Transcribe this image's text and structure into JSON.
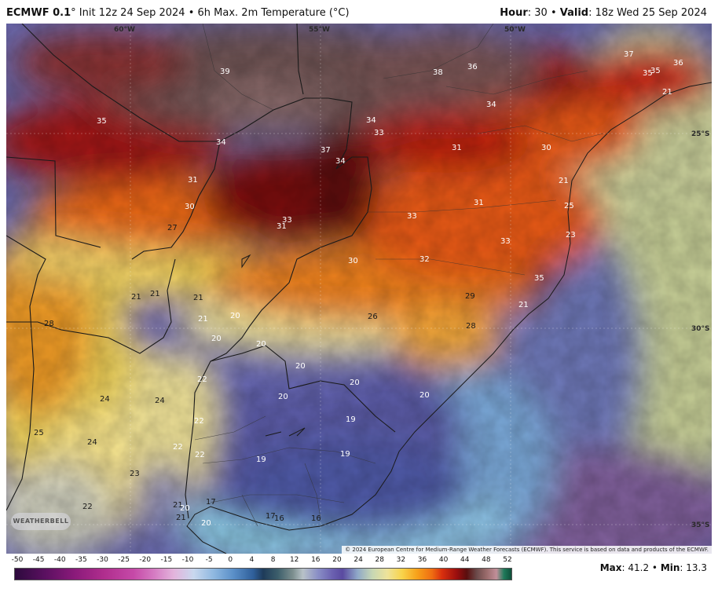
{
  "header": {
    "model": "ECMWF 0.1",
    "degree": "°",
    "init": " Init 12z 24 Sep 2024 • 6h Max. 2m Temperature (°C)",
    "hour_label": "Hour",
    "hour_value": ": 30 • ",
    "valid_label": "Valid",
    "valid_value": ": 18z Wed 25 Sep 2024"
  },
  "map": {
    "longitude_labels": [
      "60°W",
      "55°W",
      "50°W"
    ],
    "latitude_labels": [
      "25°S",
      "30°S",
      "35°S"
    ],
    "temperature_labels": [
      {
        "v": "39"
      },
      {
        "v": "38"
      },
      {
        "v": "36"
      },
      {
        "v": "37"
      },
      {
        "v": "35"
      },
      {
        "v": "36"
      },
      {
        "v": "35"
      },
      {
        "v": "34"
      },
      {
        "v": "35"
      },
      {
        "v": "34"
      },
      {
        "v": "33"
      },
      {
        "v": "37"
      },
      {
        "v": "34"
      },
      {
        "v": "31"
      },
      {
        "v": "30"
      },
      {
        "v": "34"
      },
      {
        "v": "31"
      },
      {
        "v": "30"
      },
      {
        "v": "27"
      },
      {
        "v": "33"
      },
      {
        "v": "31"
      },
      {
        "v": "33"
      },
      {
        "v": "31"
      },
      {
        "v": "33"
      },
      {
        "v": "30"
      },
      {
        "v": "32"
      },
      {
        "v": "35"
      },
      {
        "v": "29"
      },
      {
        "v": "21"
      },
      {
        "v": "26"
      },
      {
        "v": "28"
      },
      {
        "v": "21"
      },
      {
        "v": "21"
      },
      {
        "v": "21"
      },
      {
        "v": "21"
      },
      {
        "v": "20"
      },
      {
        "v": "28"
      },
      {
        "v": "20"
      },
      {
        "v": "20"
      },
      {
        "v": "20"
      },
      {
        "v": "20"
      },
      {
        "v": "22"
      },
      {
        "v": "20"
      },
      {
        "v": "20"
      },
      {
        "v": "24"
      },
      {
        "v": "24"
      },
      {
        "v": "22"
      },
      {
        "v": "19"
      },
      {
        "v": "25"
      },
      {
        "v": "24"
      },
      {
        "v": "22"
      },
      {
        "v": "22"
      },
      {
        "v": "19"
      },
      {
        "v": "19"
      },
      {
        "v": "23"
      },
      {
        "v": "22"
      },
      {
        "v": "21"
      },
      {
        "v": "20"
      },
      {
        "v": "17"
      },
      {
        "v": "21"
      },
      {
        "v": "20"
      },
      {
        "v": "17"
      },
      {
        "v": "16"
      },
      {
        "v": "16"
      },
      {
        "v": "21"
      },
      {
        "v": "25"
      },
      {
        "v": "23"
      },
      {
        "v": "21"
      }
    ],
    "attribution": "© 2024 European Centre for Medium-Range Weather Forecasts (ECMWF). This service is based on data and products of the ECMWF.",
    "logo_text": "WEATHERBELL"
  },
  "colorbar": {
    "ticks": [
      "-50",
      "-45",
      "-40",
      "-35",
      "-30",
      "-25",
      "-20",
      "-15",
      "-10",
      "-5",
      "0",
      "4",
      "8",
      "12",
      "16",
      "20",
      "24",
      "28",
      "32",
      "36",
      "40",
      "44",
      "48",
      "52"
    ],
    "colors": {
      "hot": "#d9300e",
      "extreme": "#5a0e0e",
      "mild": "#f8d34a",
      "cool": "#6a60b0",
      "ocean": "#8fa8d8"
    }
  },
  "stats": {
    "max_label": "Max",
    "max_value": ": 41.2 • ",
    "min_label": "Min",
    "min_value": ": 13.3"
  }
}
